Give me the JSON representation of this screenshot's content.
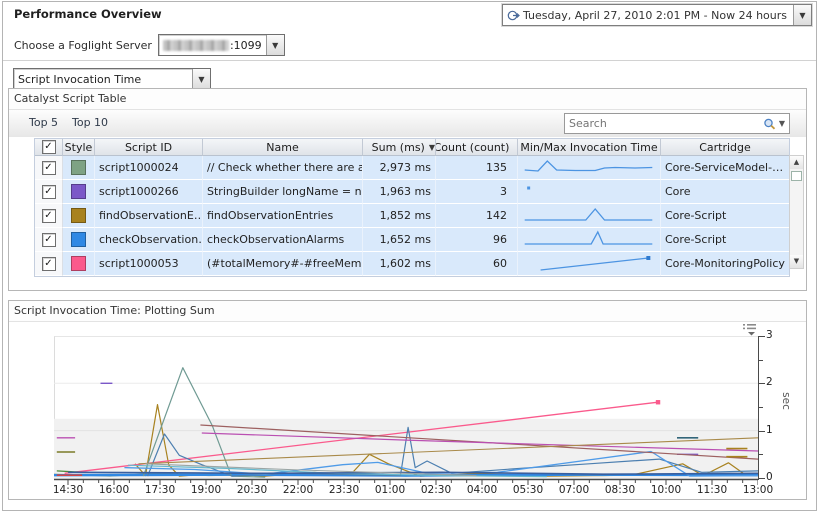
{
  "header": {
    "title": "Performance Overview",
    "time_range": "Tuesday, April 27, 2010 2:01 PM - Now 24 hours",
    "server_label": "Choose a Foglight Server",
    "server_port": ":1099",
    "metric_select": "Script Invocation Time"
  },
  "table_panel": {
    "title": "Catalyst Script Table",
    "top5_label": "Top 5",
    "top10_label": "Top 10",
    "search_placeholder": "Search",
    "columns": {
      "style": "Style",
      "script_id": "Script ID",
      "name": "Name",
      "sum": "Sum (ms)",
      "count": "Count (count)",
      "minmax": "Min/Max Invocation Time",
      "cartridge": "Cartridge"
    },
    "sort_column": "Sum (ms)",
    "sort_direction": "desc",
    "rows": [
      {
        "checked": true,
        "color": "#7EA284",
        "script_id": "script1000024",
        "name": "// Check whether there are any alar…",
        "sum": "2,973 ms",
        "count": "135",
        "cartridge": "Core-ServiceModel-…",
        "spark": {
          "type": "line",
          "points": [
            [
              2,
              12
            ],
            [
              12,
              13
            ],
            [
              19,
              3
            ],
            [
              26,
              12
            ],
            [
              40,
              12.5
            ],
            [
              55,
              12.5
            ],
            [
              62,
              10
            ],
            [
              70,
              9.5
            ],
            [
              85,
              10
            ],
            [
              98,
              9.5
            ]
          ]
        }
      },
      {
        "checked": true,
        "color": "#7B58C8",
        "script_id": "script1000266",
        "name": "StringBuilder longName = new Strin…",
        "sum": "1,963 ms",
        "count": "3",
        "cartridge": "Core",
        "spark": {
          "type": "dot",
          "points": [
            [
              5,
              6
            ]
          ]
        }
      },
      {
        "checked": true,
        "color": "#A8821F",
        "script_id": "findObservationE…",
        "name": "findObservationEntries",
        "sum": "1,852 ms",
        "count": "142",
        "cartridge": "Core-Script",
        "spark": {
          "type": "line",
          "points": [
            [
              2,
              14
            ],
            [
              48,
              14
            ],
            [
              55,
              3
            ],
            [
              62,
              14
            ],
            [
              98,
              14
            ]
          ]
        }
      },
      {
        "checked": true,
        "color": "#2F88E4",
        "script_id": "checkObservation…",
        "name": "checkObservationAlarms",
        "sum": "1,652 ms",
        "count": "96",
        "cartridge": "Core-Script",
        "spark": {
          "type": "line",
          "points": [
            [
              2,
              14
            ],
            [
              52,
              14
            ],
            [
              57,
              2
            ],
            [
              61,
              14
            ],
            [
              98,
              14
            ]
          ]
        }
      },
      {
        "checked": true,
        "color": "#FA5A8C",
        "script_id": "script1000053",
        "name": "(#totalMemory#-#freeMemory#)>…",
        "sum": "1,602 ms",
        "count": "60",
        "cartridge": "Core-MonitoringPolicy",
        "spark": {
          "type": "line",
          "marker_end": true,
          "points": [
            [
              14,
              16
            ],
            [
              95,
              4
            ]
          ]
        }
      }
    ]
  },
  "chart_panel": {
    "title": "Script Invocation Time: Plotting Sum"
  },
  "chart_data": {
    "type": "line",
    "title": "Script Invocation Time: Plotting Sum",
    "xlabel": "",
    "ylabel": "sec",
    "ylim": [
      0,
      3
    ],
    "y_major_ticks": [
      0,
      1,
      2,
      3
    ],
    "y_minor_ticks": [
      0.5,
      1.5,
      2.5
    ],
    "x_tick_labels": [
      "14:30",
      "16:00",
      "17:30",
      "19:00",
      "20:30",
      "22:00",
      "23:30",
      "01:00",
      "02:30",
      "04:00",
      "05:30",
      "07:00",
      "08:30",
      "10:00",
      "11:30",
      "13:00"
    ],
    "x_minor_ticks_per_label": 3,
    "grid": "faint-horizontal",
    "legend": "none",
    "band": {
      "from": 0,
      "to": 1.25,
      "color": "#f1f1f1"
    },
    "series": [
      {
        "name": "script1000024",
        "color": "#7EA284",
        "width": 1.1,
        "points": [
          [
            0,
            0.08
          ],
          [
            0.08,
            0.04
          ],
          [
            0.14,
            0.1
          ],
          [
            0.22,
            0.05
          ],
          [
            0.35,
            0.09
          ],
          [
            0.5,
            0.04
          ],
          [
            0.62,
            0.08
          ],
          [
            0.78,
            0.05
          ],
          [
            0.9,
            0.07
          ],
          [
            1,
            0.05
          ]
        ]
      },
      {
        "name": "script1000266",
        "color": "#7B58C8",
        "width": 1.4,
        "points": [
          [
            0.066,
            2.0
          ],
          [
            0.083,
            2.0
          ]
        ]
      },
      {
        "name": "script1000266-b",
        "color": "#7B58C8",
        "width": 1.4,
        "points": [
          [
            0.885,
            0.5
          ],
          [
            0.915,
            0.5
          ]
        ]
      },
      {
        "name": "findObservationEntries",
        "color": "#A8821F",
        "width": 1.2,
        "points": [
          [
            0.115,
            0.3
          ],
          [
            0.13,
            0.05
          ],
          [
            0.147,
            1.55
          ],
          [
            0.163,
            0.27
          ],
          [
            0.178,
            0.04
          ],
          [
            0.23,
            0.1
          ],
          [
            0.3,
            0.04
          ],
          [
            0.37,
            0.12
          ],
          [
            0.42,
            0.05
          ],
          [
            0.448,
            0.5
          ],
          [
            0.475,
            0.3
          ],
          [
            0.52,
            0.04
          ],
          [
            0.6,
            0.09
          ],
          [
            0.7,
            0.04
          ],
          [
            0.82,
            0.06
          ],
          [
            0.893,
            0.3
          ],
          [
            0.922,
            0.05
          ],
          [
            0.958,
            0.32
          ],
          [
            0.982,
            0.07
          ]
        ]
      },
      {
        "name": "checkObservationAlarms",
        "color": "#2F88E4",
        "width": 2.4,
        "points": [
          [
            0,
            0.06
          ],
          [
            0.25,
            0.07
          ],
          [
            0.5,
            0.05
          ],
          [
            0.75,
            0.07
          ],
          [
            1,
            0.06
          ]
        ]
      },
      {
        "name": "script1000053",
        "color": "#FA5A8C",
        "width": 1.3,
        "marker_end": true,
        "points": [
          [
            0.015,
            0.1
          ],
          [
            0.858,
            1.6
          ]
        ]
      },
      {
        "name": "teal-spike",
        "color": "#6F9A93",
        "width": 1.2,
        "points": [
          [
            0.127,
            0.04
          ],
          [
            0.183,
            2.33
          ],
          [
            0.225,
            1.1
          ],
          [
            0.252,
            0.04
          ],
          [
            0.3,
            0.02
          ]
        ]
      },
      {
        "name": "steelblue",
        "color": "#4C7FB0",
        "width": 1.2,
        "points": [
          [
            0.133,
            0.04
          ],
          [
            0.157,
            0.93
          ],
          [
            0.178,
            0.48
          ],
          [
            0.21,
            0.28
          ],
          [
            0.253,
            0.04
          ],
          [
            0.33,
            0.1
          ],
          [
            0.43,
            0.07
          ],
          [
            0.492,
            0.05
          ],
          [
            0.503,
            1.07
          ],
          [
            0.513,
            0.22
          ],
          [
            0.53,
            0.36
          ],
          [
            0.565,
            0.1
          ],
          [
            0.66,
            0.2
          ],
          [
            0.76,
            0.3
          ],
          [
            0.86,
            0.4
          ],
          [
            0.92,
            0.12
          ],
          [
            1,
            0.15
          ]
        ]
      },
      {
        "name": "brightblue",
        "color": "#4F9BE8",
        "width": 1.3,
        "points": [
          [
            0.1,
            0.22
          ],
          [
            0.2,
            0.18
          ],
          [
            0.3,
            0.08
          ],
          [
            0.41,
            0.28
          ],
          [
            0.46,
            0.33
          ],
          [
            0.53,
            0.1
          ],
          [
            0.63,
            0.12
          ],
          [
            0.848,
            0.56
          ],
          [
            0.903,
            0.04
          ],
          [
            1,
            0.05
          ]
        ]
      },
      {
        "name": "maroon-desc",
        "color": "#9D6060",
        "width": 1.2,
        "points": [
          [
            0.208,
            1.12
          ],
          [
            1,
            0.4
          ]
        ]
      },
      {
        "name": "magenta-dash",
        "color": "#BA4FB2",
        "width": 1.4,
        "points": [
          [
            0.004,
            0.85
          ],
          [
            0.03,
            0.85
          ]
        ]
      },
      {
        "name": "magenta",
        "color": "#BA4FB2",
        "width": 1.2,
        "points": [
          [
            0.21,
            0.95
          ],
          [
            0.5,
            0.8
          ],
          [
            0.78,
            0.67
          ],
          [
            1,
            0.57
          ]
        ]
      },
      {
        "name": "tan-asc",
        "color": "#A98A4A",
        "width": 1.1,
        "points": [
          [
            0.12,
            0.3
          ],
          [
            1,
            0.85
          ]
        ]
      },
      {
        "name": "darkteal-dash",
        "color": "#33667A",
        "width": 1.6,
        "points": [
          [
            0.885,
            0.85
          ],
          [
            0.915,
            0.85
          ]
        ]
      },
      {
        "name": "gold-dash-1",
        "color": "#A8821F",
        "width": 1.6,
        "points": [
          [
            0.955,
            0.62
          ],
          [
            0.985,
            0.62
          ]
        ]
      },
      {
        "name": "gold-dash-2",
        "color": "#A8821F",
        "width": 1.6,
        "points": [
          [
            0.955,
            0.45
          ],
          [
            0.985,
            0.45
          ]
        ]
      },
      {
        "name": "olive-dash",
        "color": "#7A7A28",
        "width": 1.4,
        "points": [
          [
            0.004,
            0.55
          ],
          [
            0.03,
            0.55
          ]
        ]
      },
      {
        "name": "green-dash",
        "color": "#4A8A3A",
        "width": 1.3,
        "points": [
          [
            0.004,
            0.15
          ],
          [
            0.04,
            0.12
          ]
        ]
      },
      {
        "name": "red-dash",
        "color": "#D04545",
        "width": 1.6,
        "points": [
          [
            0.004,
            0.06
          ],
          [
            0.04,
            0.06
          ]
        ]
      },
      {
        "name": "cyan",
        "color": "#66B8CC",
        "width": 1.2,
        "points": [
          [
            0.105,
            0.27
          ],
          [
            0.25,
            0.2
          ],
          [
            0.4,
            0.1
          ],
          [
            0.55,
            0.05
          ],
          [
            0.7,
            0.03
          ]
        ]
      },
      {
        "name": "navy",
        "color": "#3A5F9E",
        "width": 1.6,
        "points": [
          [
            0.02,
            0.12
          ],
          [
            0.3,
            0.1
          ],
          [
            0.55,
            0.12
          ],
          [
            0.78,
            0.08
          ],
          [
            1,
            0.1
          ]
        ]
      },
      {
        "name": "gray",
        "color": "#9AA5A5",
        "width": 1.1,
        "points": [
          [
            0.13,
            0.3
          ],
          [
            0.35,
            0.17
          ],
          [
            0.6,
            0.05
          ]
        ]
      }
    ]
  }
}
